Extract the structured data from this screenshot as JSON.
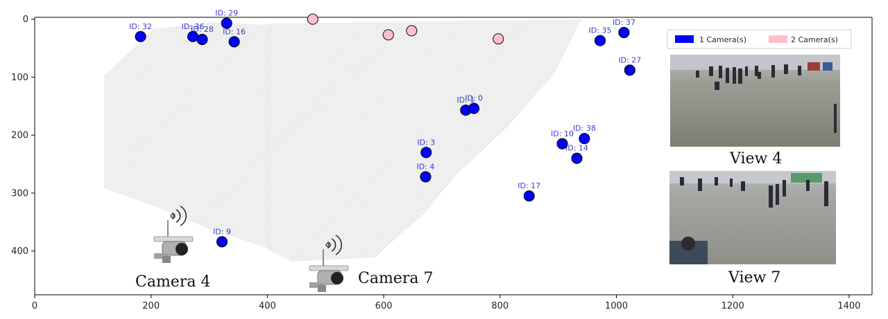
{
  "chart_data": {
    "type": "scatter",
    "title": "",
    "xlabel": "",
    "ylabel": "",
    "xlim": [
      0,
      1450
    ],
    "ylim": [
      478,
      -5
    ],
    "y_inverted": true,
    "xticks": [
      0,
      200,
      400,
      600,
      800,
      1000,
      1200,
      1400
    ],
    "yticks": [
      0,
      100,
      200,
      300,
      400
    ],
    "grid": false,
    "legend_position": "top-right",
    "legend": [
      {
        "label": "1 Camera(s)",
        "color": "#0000ff"
      },
      {
        "label": "2 Camera(s)",
        "color": "#ffc0cb"
      }
    ],
    "series": [
      {
        "name": "1 Camera(s)",
        "color": "#0000ff",
        "points": [
          {
            "id": "ID: 32",
            "x": 182,
            "y": 30
          },
          {
            "id": "ID: 36",
            "x": 272,
            "y": 30
          },
          {
            "id": "ID: 28",
            "x": 288,
            "y": 35
          },
          {
            "id": "ID: 29",
            "x": 330,
            "y": 7
          },
          {
            "id": "ID: 16",
            "x": 343,
            "y": 39
          },
          {
            "id": "ID: 35",
            "x": 972,
            "y": 37
          },
          {
            "id": "ID: 37",
            "x": 1013,
            "y": 23
          },
          {
            "id": "ID: 27",
            "x": 1023,
            "y": 88
          },
          {
            "id": "ID: 1",
            "x": 741,
            "y": 157
          },
          {
            "id": "ID: 0",
            "x": 755,
            "y": 154
          },
          {
            "id": "ID: 10",
            "x": 907,
            "y": 215
          },
          {
            "id": "ID: 38",
            "x": 945,
            "y": 206
          },
          {
            "id": "ID: 14",
            "x": 932,
            "y": 240
          },
          {
            "id": "ID: 3",
            "x": 673,
            "y": 230
          },
          {
            "id": "ID: 4",
            "x": 672,
            "y": 272
          },
          {
            "id": "ID: 17",
            "x": 850,
            "y": 305
          },
          {
            "id": "ID: 9",
            "x": 322,
            "y": 384
          }
        ]
      },
      {
        "name": "2 Camera(s)",
        "color": "#ffc0cb",
        "points": [
          {
            "x": 478,
            "y": 0
          },
          {
            "x": 608,
            "y": 27
          },
          {
            "x": 648,
            "y": 20
          },
          {
            "x": 797,
            "y": 34
          }
        ]
      }
    ],
    "annotations": [
      "Camera 4",
      "Camera 7",
      "View 4",
      "View 7"
    ]
  },
  "cameras": [
    {
      "label": "Camera 4",
      "icon": "surveillance-camera-icon"
    },
    {
      "label": "Camera 7",
      "icon": "surveillance-camera-icon"
    }
  ],
  "views": [
    {
      "label": "View 4"
    },
    {
      "label": "View 7"
    }
  ],
  "colors": {
    "one_camera": "#0000ff",
    "two_camera": "#ffc0cb",
    "id_label": "#3a3ad6",
    "fov": "#e6e6e6",
    "ground": "#8c8c7e"
  }
}
